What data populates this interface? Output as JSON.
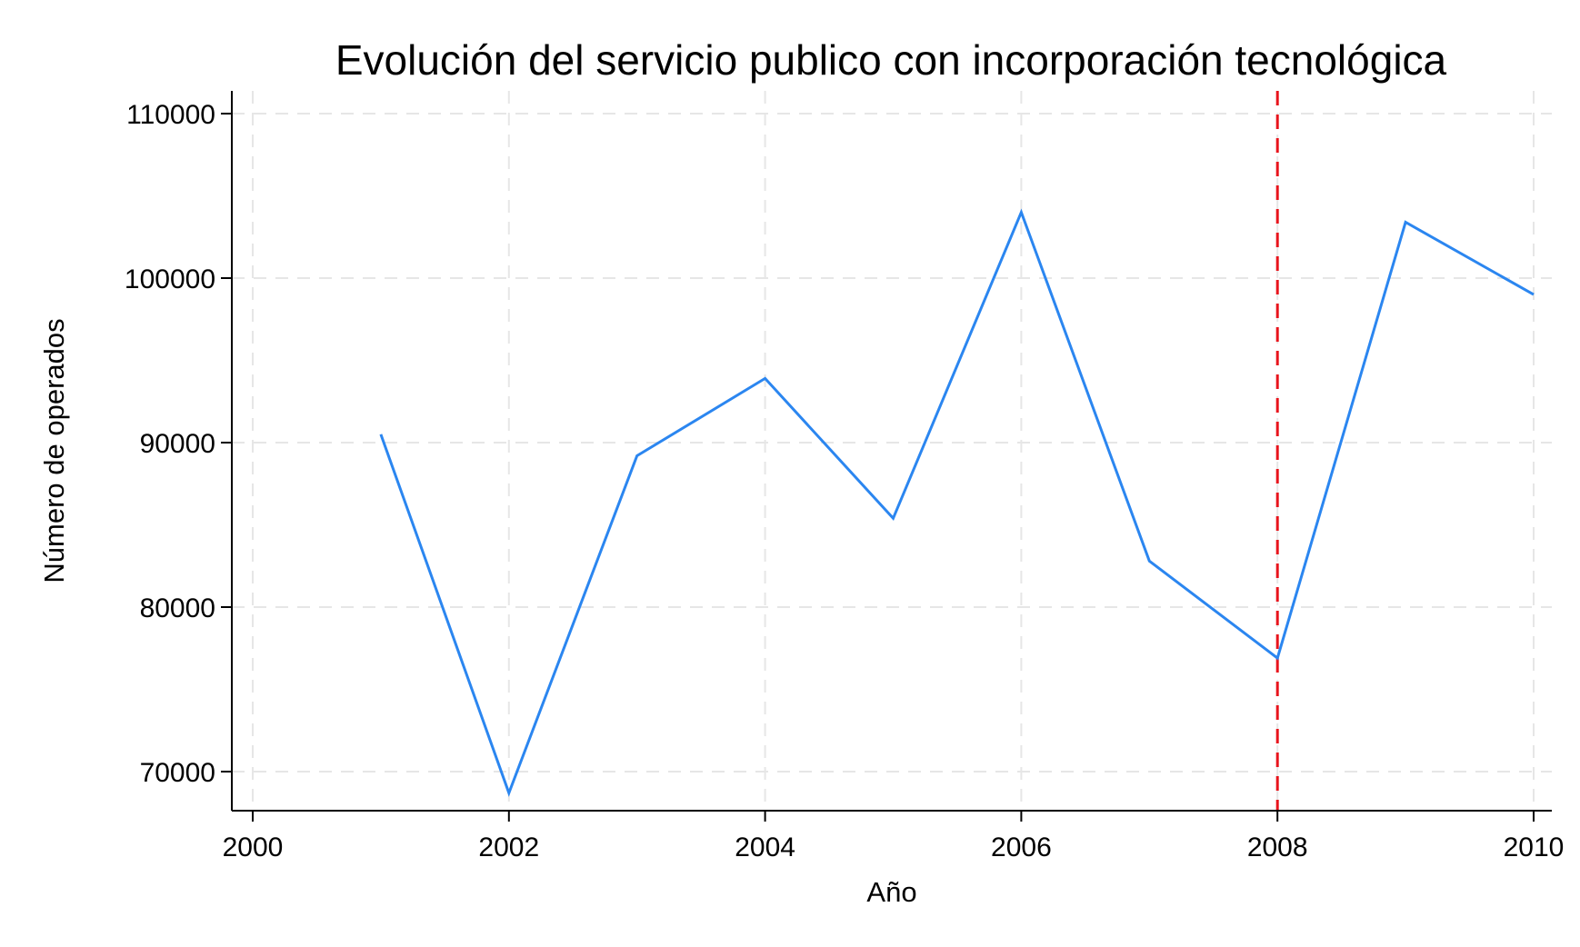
{
  "chart_data": {
    "type": "line",
    "title": "Evolución del servicio publico con incorporación tecnológica",
    "xlabel": "Año",
    "ylabel": "Número de operados",
    "xlim": [
      2000,
      2010
    ],
    "ylim": [
      67500,
      111500
    ],
    "x_ticks": [
      2000,
      2002,
      2004,
      2006,
      2008,
      2010
    ],
    "y_ticks": [
      70000,
      80000,
      90000,
      100000,
      110000
    ],
    "grid": true,
    "series": [
      {
        "color": "#2b86f0",
        "x": [
          2001,
          2002,
          2003,
          2004,
          2005,
          2006,
          2007,
          2008,
          2009,
          2010
        ],
        "y": [
          90500,
          68700,
          89200,
          93900,
          85400,
          104000,
          82800,
          76900,
          103400,
          99000
        ]
      }
    ],
    "reference_lines": [
      {
        "axis": "x",
        "value": 2008,
        "color": "#e8141c",
        "style": "dashed"
      }
    ]
  }
}
